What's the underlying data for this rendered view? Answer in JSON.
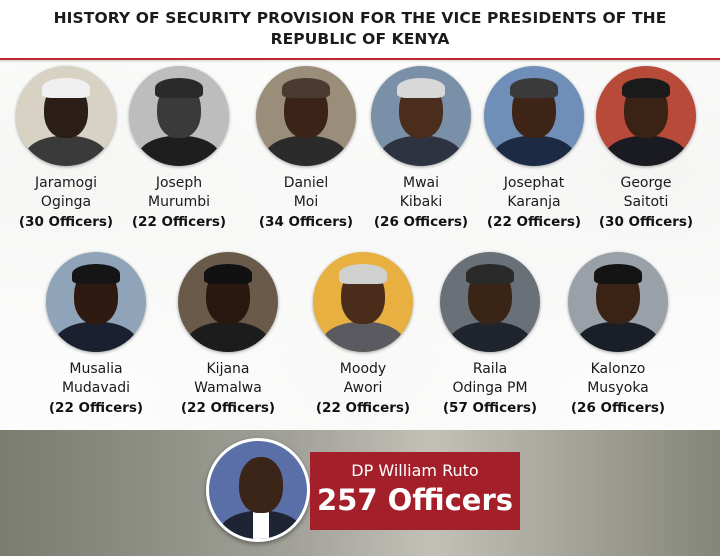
{
  "title": "HISTORY OF SECURITY PROVISION FOR THE VICE PRESIDENTS OF THE REPUBLIC OF KENYA",
  "row1": [
    {
      "first": "Jaramogi",
      "last": "Oginga",
      "officers": "(30 Officers)",
      "bg": "#d8d2c4",
      "skin": "#2a1e17",
      "suit": "#3a3a3a",
      "hair": "#f0f0f0"
    },
    {
      "first": "Joseph",
      "last": "Murumbi",
      "officers": "(22 Officers)",
      "bg": "#bdbdbd",
      "skin": "#3a3a3a",
      "suit": "#1e1e1e",
      "hair": "#2a2a2a"
    },
    {
      "first": "Daniel",
      "last": "Moi",
      "officers": "(34 Officers)",
      "bg": "#9a8d7a",
      "skin": "#3b2417",
      "suit": "#2b2b2b",
      "hair": "#4a3a30"
    },
    {
      "first": "Mwai",
      "last": "Kibaki",
      "officers": "(26 Officers)",
      "bg": "#7a8fa8",
      "skin": "#4a2d1c",
      "suit": "#2d3340",
      "hair": "#d8d8d8"
    },
    {
      "first": "Josephat",
      "last": "Karanja",
      "officers": "(22 Officers)",
      "bg": "#6f8fb8",
      "skin": "#3e2518",
      "suit": "#1c2a44",
      "hair": "#3a3a3a"
    },
    {
      "first": "George",
      "last": "Saitoti",
      "officers": "(30 Officers)",
      "bg": "#b84a3a",
      "skin": "#3a2215",
      "suit": "#1a1a22",
      "hair": "#1a1a1a"
    }
  ],
  "row2": [
    {
      "first": "Musalia",
      "last": "Mudavadi",
      "officers": "(22 Officers)",
      "bg": "#8fa4b8",
      "skin": "#2e1a10",
      "suit": "#1a2030",
      "hair": "#151515"
    },
    {
      "first": "Kijana",
      "last": "Wamalwa",
      "officers": "(22 Officers)",
      "bg": "#6a5a4a",
      "skin": "#2a1810",
      "suit": "#1c1c1c",
      "hair": "#111111"
    },
    {
      "first": "Moody",
      "last": "Awori",
      "officers": "(22 Officers)",
      "bg": "#e8b040",
      "skin": "#4a2c1a",
      "suit": "#5a5a60",
      "hair": "#d0d0d0"
    },
    {
      "first": "Raila",
      "last": "Odinga PM",
      "officers": "(57 Officers)",
      "bg": "#6a7078",
      "skin": "#3a2416",
      "suit": "#20242c",
      "hair": "#2a2a2a"
    },
    {
      "first": "Kalonzo",
      "last": "Musyoka",
      "officers": "(26 Officers)",
      "bg": "#9aa0a8",
      "skin": "#3a2214",
      "suit": "#1a1e26",
      "hair": "#141414"
    }
  ],
  "current": {
    "name": "DP William Ruto",
    "officers": "257 Officers"
  },
  "colors": {
    "accent": "#a3202a",
    "rule": "#c0272d"
  }
}
